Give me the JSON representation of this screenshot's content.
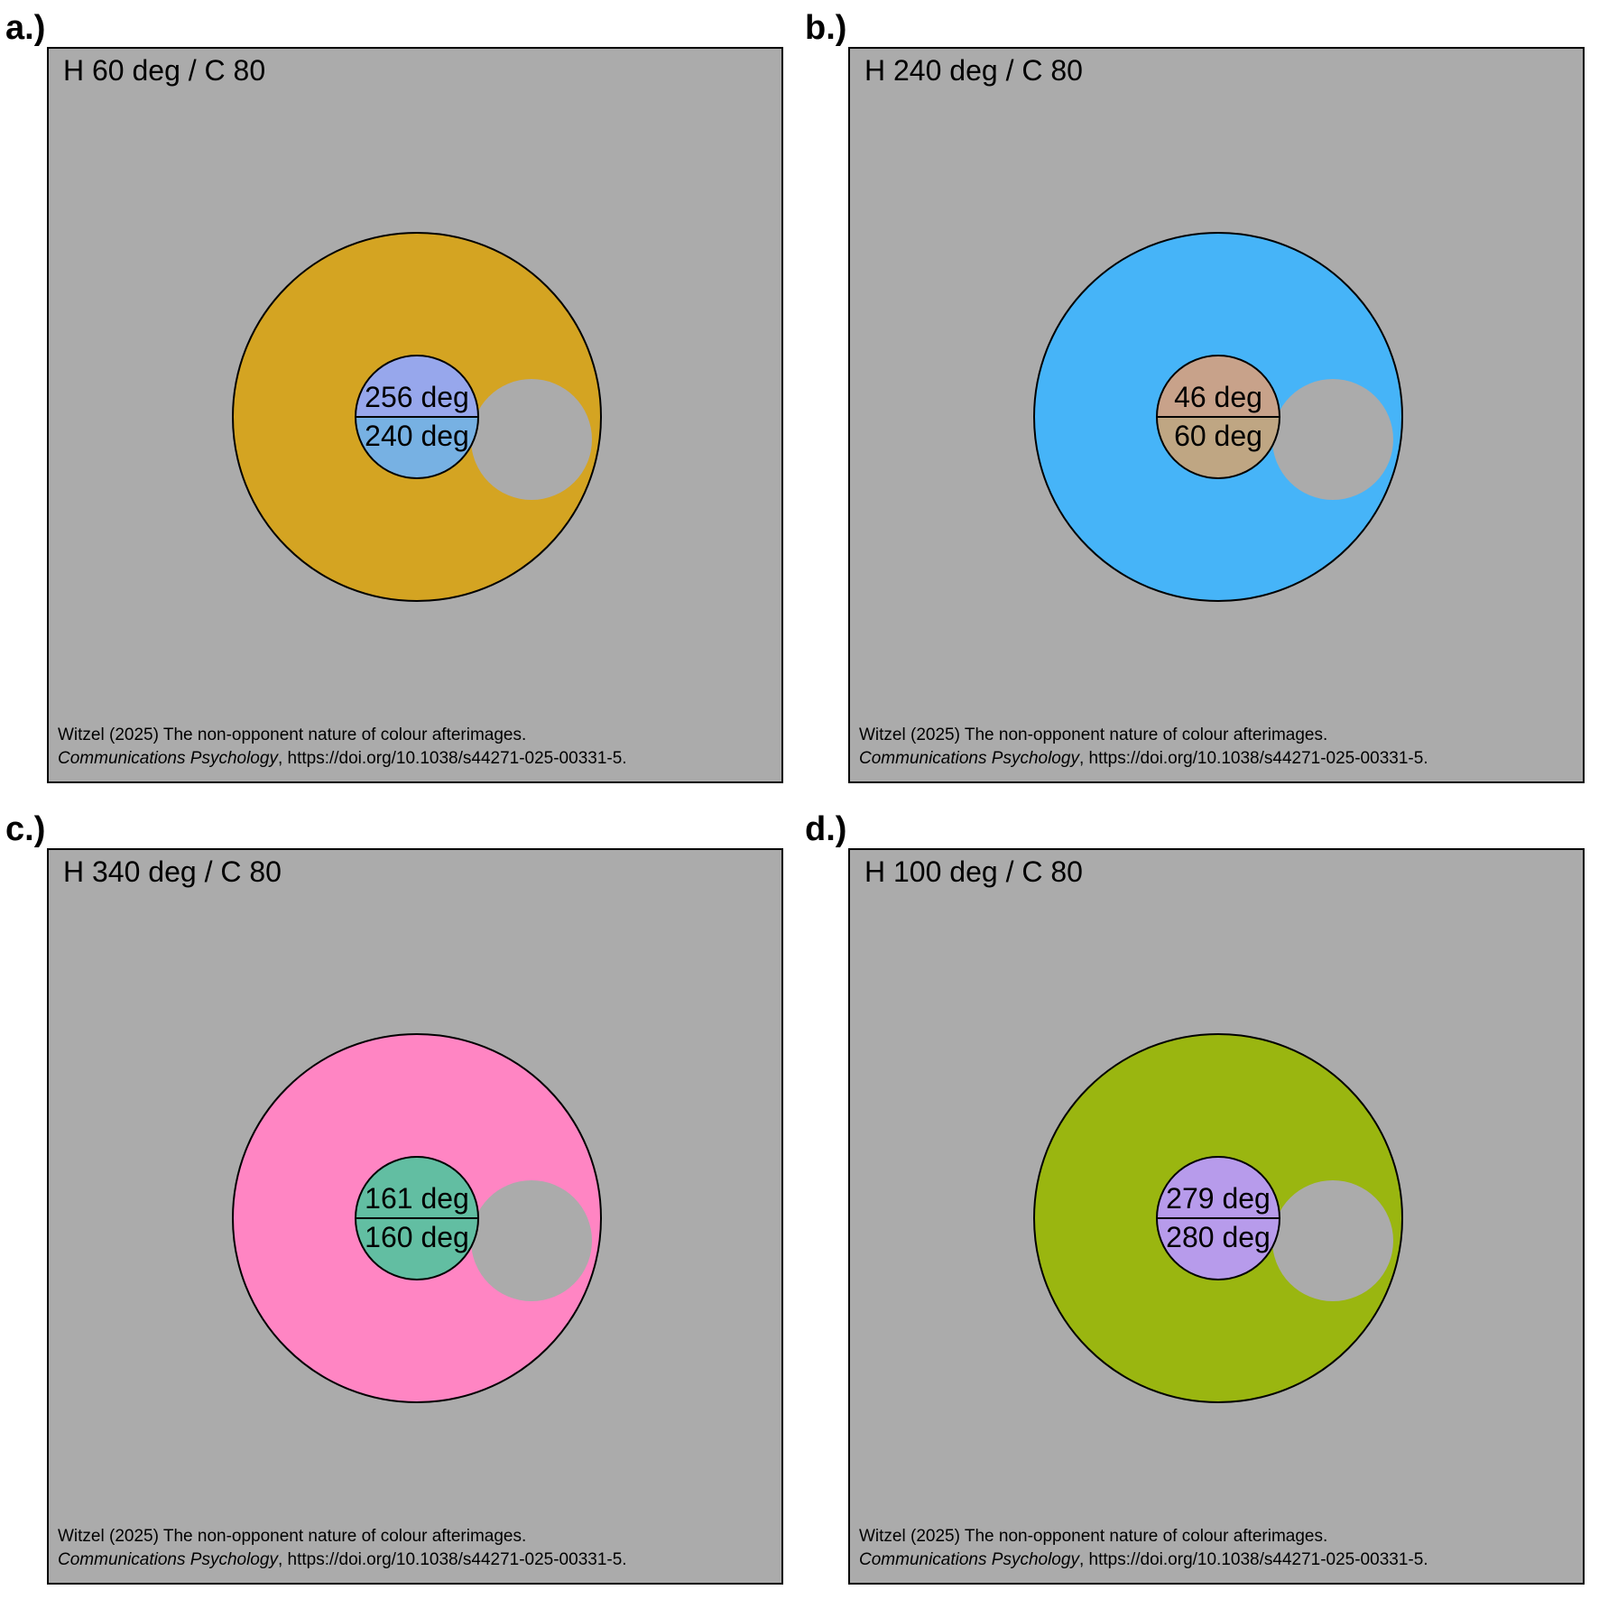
{
  "background_color": "#ABABAB",
  "panels": [
    {
      "letter": "a.)",
      "title": "H 60 deg / C 80",
      "surround_color": "#D4A422",
      "center_color_top": "#97A7EC",
      "center_color_bottom": "#77B1E3",
      "center_label_top": "256 deg",
      "center_label_bottom": "240 deg"
    },
    {
      "letter": "b.)",
      "title": "H 240 deg / C 80",
      "surround_color": "#46B4F8",
      "center_color_top": "#C8A28A",
      "center_color_bottom": "#BFA683",
      "center_label_top": "46 deg",
      "center_label_bottom": "60 deg"
    },
    {
      "letter": "c.)",
      "title": "H 340 deg / C 80",
      "surround_color": "#FF85C3",
      "center_color_top": "#62BEA2",
      "center_color_bottom": "#62BEA2",
      "center_label_top": "161 deg",
      "center_label_bottom": "160 deg"
    },
    {
      "letter": "d.)",
      "title": "H 100 deg / C 80",
      "surround_color": "#9AB610",
      "center_color_top": "#B79BEB",
      "center_color_bottom": "#B79BEB",
      "center_label_top": "279 deg",
      "center_label_bottom": "280 deg"
    }
  ],
  "citation": {
    "line1": "Witzel (2025) The non-opponent nature of colour afterimages.",
    "journal": "Communications Psychology",
    "line2_rest": ", https://doi.org/10.1038/s44271-025-00331-5."
  }
}
